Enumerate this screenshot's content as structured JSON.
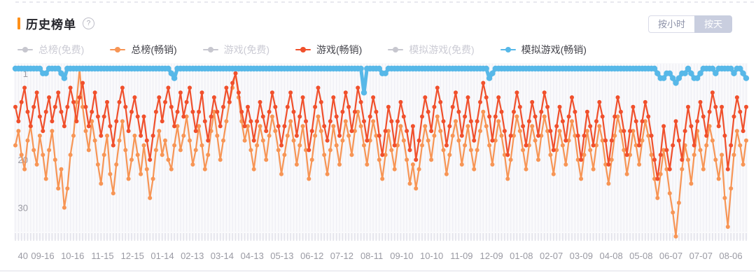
{
  "header": {
    "title": "历史榜单",
    "help_icon": "?",
    "accent_color": "#ff9018"
  },
  "controls": {
    "by_hour_label": "按小时",
    "by_day_label": "按天",
    "selected": "按天"
  },
  "legend": [
    {
      "label": "总榜(免费)",
      "color": "#c7c7cf",
      "active": false
    },
    {
      "label": "总榜(畅销)",
      "color": "#f79555",
      "active": true
    },
    {
      "label": "游戏(免费)",
      "color": "#c7c7cf",
      "active": false
    },
    {
      "label": "游戏(畅销)",
      "color": "#f0502c",
      "active": true
    },
    {
      "label": "模拟游戏(免费)",
      "color": "#c7c7cf",
      "active": false
    },
    {
      "label": "模拟游戏(畅销)",
      "color": "#57b8e8",
      "active": true
    }
  ],
  "chart_data": {
    "type": "line",
    "y_axis": {
      "inverted": true,
      "ticks": [
        1,
        20,
        30,
        40
      ],
      "meaning": "rank"
    },
    "x_labels": [
      "09-16",
      "10-16",
      "11-15",
      "12-15",
      "01-14",
      "02-13",
      "03-14",
      "04-13",
      "05-13",
      "06-12",
      "07-12",
      "08-11",
      "09-10",
      "10-10",
      "11-09",
      "12-09",
      "01-08",
      "02-07",
      "03-09",
      "04-08",
      "05-08",
      "06-07",
      "07-07",
      "08-06"
    ],
    "colors": {
      "stripe": "#f0f0f5",
      "tick_band": "#e2e2ea",
      "axis_text": "#9a9aa3",
      "plot_bg": "#fafafc"
    },
    "series": [
      {
        "name": "总榜(免费)",
        "color": "#c7c7cf",
        "active": false,
        "values": []
      },
      {
        "name": "总榜(畅销)",
        "color": "#f79555",
        "active": true,
        "values": [
          17,
          14,
          19,
          22,
          16,
          13,
          18,
          21,
          15,
          19,
          24,
          18,
          14,
          20,
          26,
          22,
          30,
          26,
          19,
          15,
          8,
          1,
          9,
          14,
          18,
          12,
          16,
          21,
          25,
          19,
          15,
          23,
          27,
          21,
          16,
          12,
          18,
          24,
          20,
          15,
          19,
          23,
          17,
          22,
          28,
          24,
          18,
          14,
          19,
          16,
          20,
          22,
          17,
          13,
          18,
          15,
          11,
          16,
          21,
          18,
          13,
          17,
          22,
          19,
          14,
          10,
          15,
          20,
          16,
          12,
          8,
          5,
          2,
          7,
          12,
          16,
          13,
          18,
          22,
          17,
          13,
          16,
          20,
          15,
          11,
          14,
          18,
          23,
          19,
          15,
          12,
          16,
          21,
          17,
          13,
          18,
          24,
          20,
          15,
          11,
          14,
          19,
          23,
          18,
          13,
          17,
          21,
          16,
          12,
          15,
          19,
          14,
          10,
          13,
          17,
          21,
          16,
          12,
          15,
          20,
          24,
          19,
          14,
          18,
          22,
          17,
          13,
          16,
          20,
          25,
          21,
          26,
          22,
          17,
          13,
          16,
          20,
          15,
          11,
          14,
          18,
          23,
          19,
          15,
          12,
          16,
          21,
          17,
          13,
          18,
          22,
          18,
          14,
          10,
          13,
          17,
          21,
          16,
          12,
          15,
          19,
          24,
          20,
          15,
          11,
          14,
          18,
          22,
          17,
          13,
          16,
          20,
          15,
          11,
          14,
          19,
          23,
          18,
          14,
          17,
          21,
          16,
          12,
          15,
          20,
          24,
          19,
          14,
          18,
          22,
          17,
          13,
          16,
          21,
          25,
          20,
          15,
          11,
          14,
          18,
          23,
          19,
          14,
          17,
          21,
          16,
          12,
          15,
          19,
          24,
          28,
          23,
          18,
          22,
          27,
          31,
          36,
          29,
          22,
          17,
          20,
          25,
          19,
          14,
          18,
          22,
          17,
          13,
          16,
          20,
          24,
          19,
          28,
          34,
          26,
          19,
          14,
          17,
          21,
          16
        ]
      },
      {
        "name": "游戏(免费)",
        "color": "#c7c7cf",
        "active": false,
        "values": []
      },
      {
        "name": "游戏(畅销)",
        "color": "#f0502c",
        "active": true,
        "values": [
          9,
          12,
          8,
          5,
          10,
          13,
          9,
          6,
          11,
          14,
          10,
          7,
          12,
          9,
          6,
          10,
          13,
          9,
          5,
          8,
          12,
          7,
          4,
          9,
          13,
          10,
          6,
          11,
          15,
          11,
          8,
          13,
          17,
          12,
          8,
          5,
          9,
          14,
          10,
          7,
          11,
          15,
          11,
          16,
          20,
          15,
          10,
          7,
          12,
          8,
          5,
          9,
          13,
          10,
          6,
          11,
          8,
          5,
          10,
          14,
          10,
          6,
          12,
          16,
          11,
          7,
          10,
          13,
          9,
          5,
          8,
          4,
          2,
          6,
          10,
          13,
          9,
          12,
          16,
          12,
          8,
          11,
          14,
          10,
          6,
          9,
          13,
          17,
          13,
          9,
          6,
          10,
          15,
          11,
          7,
          12,
          18,
          14,
          9,
          5,
          8,
          13,
          16,
          12,
          7,
          11,
          15,
          10,
          6,
          9,
          14,
          10,
          5,
          8,
          12,
          16,
          11,
          7,
          10,
          15,
          19,
          14,
          9,
          12,
          17,
          12,
          8,
          11,
          14,
          18,
          13,
          20,
          16,
          11,
          7,
          10,
          14,
          9,
          5,
          8,
          12,
          17,
          13,
          9,
          6,
          10,
          15,
          11,
          7,
          12,
          16,
          12,
          8,
          4,
          7,
          11,
          16,
          11,
          7,
          10,
          14,
          19,
          15,
          10,
          6,
          9,
          13,
          17,
          12,
          8,
          11,
          15,
          10,
          6,
          9,
          14,
          18,
          13,
          9,
          12,
          16,
          11,
          7,
          10,
          15,
          20,
          15,
          10,
          13,
          17,
          12,
          8,
          11,
          16,
          21,
          16,
          11,
          7,
          10,
          14,
          19,
          14,
          9,
          12,
          17,
          12,
          8,
          11,
          15,
          20,
          24,
          19,
          13,
          18,
          22,
          17,
          12,
          16,
          20,
          14,
          9,
          13,
          17,
          12,
          8,
          11,
          15,
          10,
          6,
          9,
          13,
          9,
          15,
          22,
          17,
          11,
          7,
          10,
          14,
          9
        ]
      },
      {
        "name": "模拟游戏(免费)",
        "color": "#c7c7cf",
        "active": false,
        "values": []
      },
      {
        "name": "模拟游戏(畅销)",
        "color": "#57b8e8",
        "active": true,
        "values": [
          1,
          1,
          1,
          1,
          1,
          1,
          1,
          1,
          1,
          2,
          2,
          1,
          1,
          1,
          1,
          2,
          3,
          1,
          1,
          1,
          1,
          1,
          1,
          1,
          1,
          1,
          1,
          1,
          1,
          1,
          1,
          1,
          1,
          1,
          1,
          1,
          1,
          1,
          1,
          1,
          1,
          1,
          1,
          1,
          1,
          1,
          1,
          1,
          1,
          1,
          1,
          2,
          3,
          1,
          1,
          1,
          1,
          1,
          1,
          1,
          1,
          1,
          1,
          1,
          1,
          1,
          1,
          1,
          1,
          1,
          1,
          1,
          1,
          1,
          1,
          1,
          1,
          1,
          1,
          1,
          1,
          1,
          1,
          1,
          1,
          1,
          1,
          1,
          1,
          1,
          1,
          1,
          1,
          1,
          1,
          1,
          1,
          1,
          1,
          1,
          1,
          1,
          1,
          1,
          1,
          1,
          1,
          1,
          1,
          1,
          1,
          1,
          1,
          1,
          6,
          1,
          1,
          1,
          1,
          1,
          2,
          2,
          1,
          1,
          1,
          1,
          1,
          1,
          1,
          1,
          1,
          1,
          1,
          1,
          1,
          1,
          1,
          1,
          1,
          1,
          1,
          1,
          1,
          1,
          1,
          1,
          1,
          1,
          1,
          1,
          1,
          1,
          1,
          1,
          1,
          3,
          2,
          1,
          1,
          1,
          1,
          1,
          1,
          1,
          1,
          1,
          1,
          1,
          1,
          1,
          1,
          1,
          1,
          1,
          1,
          1,
          1,
          1,
          1,
          1,
          1,
          1,
          1,
          1,
          1,
          1,
          1,
          1,
          1,
          1,
          1,
          1,
          1,
          1,
          1,
          1,
          1,
          1,
          1,
          1,
          1,
          1,
          1,
          1,
          1,
          1,
          1,
          1,
          1,
          1,
          2,
          3,
          3,
          2,
          2,
          3,
          4,
          3,
          2,
          2,
          1,
          2,
          3,
          3,
          2,
          1,
          1,
          1,
          1,
          2,
          1,
          1,
          1,
          1,
          1,
          2,
          1,
          1,
          2,
          3
        ]
      }
    ]
  }
}
